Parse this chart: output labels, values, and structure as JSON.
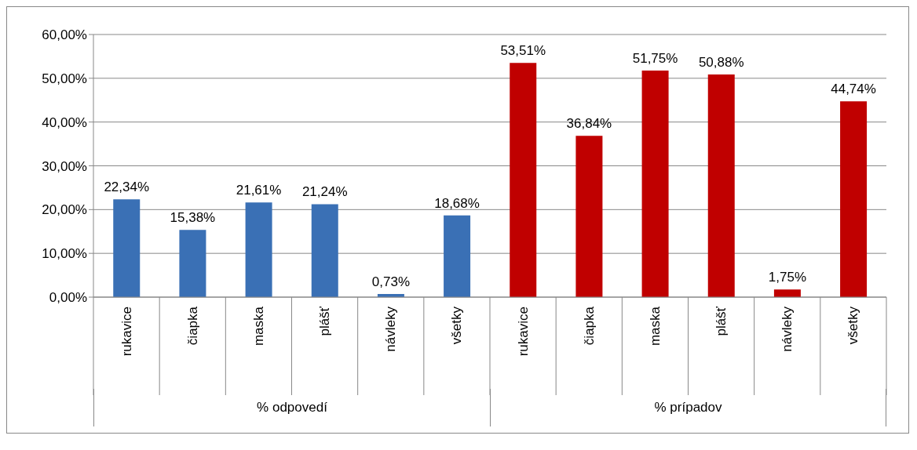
{
  "chart_data": {
    "type": "bar",
    "categories": [
      "rukavice",
      "čiapka",
      "maska",
      "plášť",
      "návleky",
      "všetky",
      "rukavice",
      "čiapka",
      "maska",
      "plášť",
      "návleky",
      "všetky"
    ],
    "values": [
      22.34,
      15.38,
      21.61,
      21.24,
      0.73,
      18.68,
      53.51,
      36.84,
      51.75,
      50.88,
      1.75,
      44.74
    ],
    "colors": [
      "#3a70b5",
      "#3a70b5",
      "#3a70b5",
      "#3a70b5",
      "#3a70b5",
      "#3a70b5",
      "#c00000",
      "#c00000",
      "#c00000",
      "#c00000",
      "#c00000",
      "#c00000"
    ],
    "value_labels": [
      "22,34%",
      "15,38%",
      "21,61%",
      "21,24%",
      "0,73%",
      "18,68%",
      "53,51%",
      "36,84%",
      "51,75%",
      "50,88%",
      "1,75%",
      "44,74%"
    ],
    "ylim": [
      0,
      60
    ],
    "yticks": [
      {
        "value": 0,
        "label": "0,00%"
      },
      {
        "value": 10,
        "label": "10,00%"
      },
      {
        "value": 20,
        "label": "20,00%"
      },
      {
        "value": 30,
        "label": "30,00%"
      },
      {
        "value": 40,
        "label": "40,00%"
      },
      {
        "value": 50,
        "label": "50,00%"
      },
      {
        "value": 60,
        "label": "60,00%"
      }
    ],
    "grid": "y",
    "annotations": [
      "% odpovedí",
      "% prípadov"
    ]
  }
}
